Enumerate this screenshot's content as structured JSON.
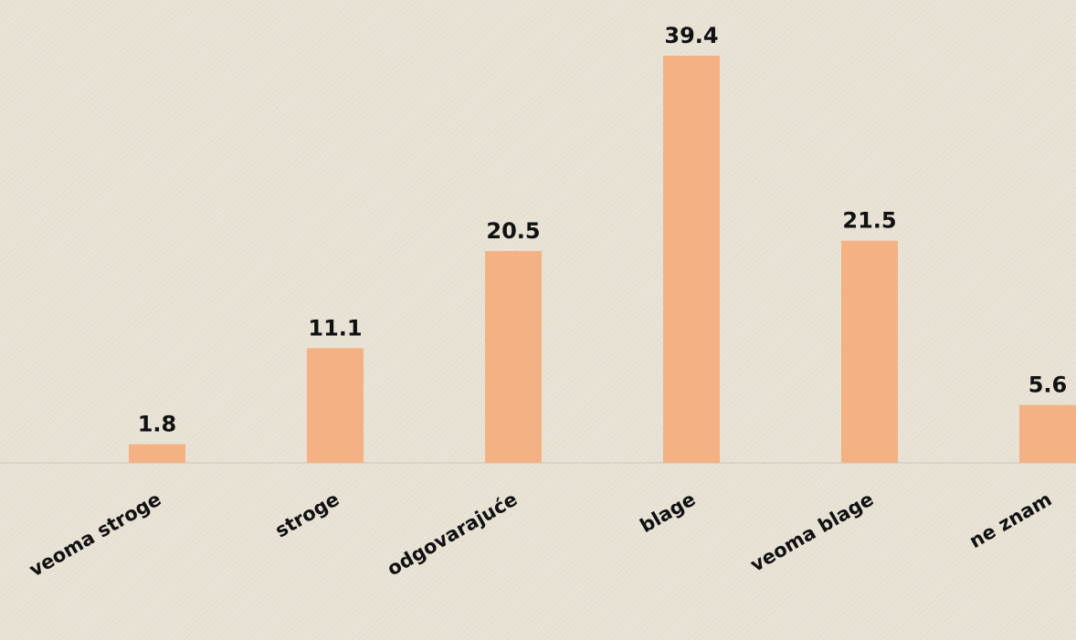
{
  "chart_data": {
    "type": "bar",
    "categories": [
      "veoma stroge",
      "stroge",
      "odgovarajuće",
      "blage",
      "veoma blage",
      "ne znam"
    ],
    "values": [
      1.8,
      11.1,
      20.5,
      39.4,
      21.5,
      5.6
    ],
    "data_labels": [
      "1.8",
      "11.1",
      "20.5",
      "39.4",
      "21.5",
      "5.6"
    ],
    "ylim": [
      0,
      39.4
    ],
    "grid": false,
    "legend": "none",
    "bar_color": "#f4b183",
    "axis_color": "#d7d3c8",
    "background_color": "#e8e2d5"
  }
}
